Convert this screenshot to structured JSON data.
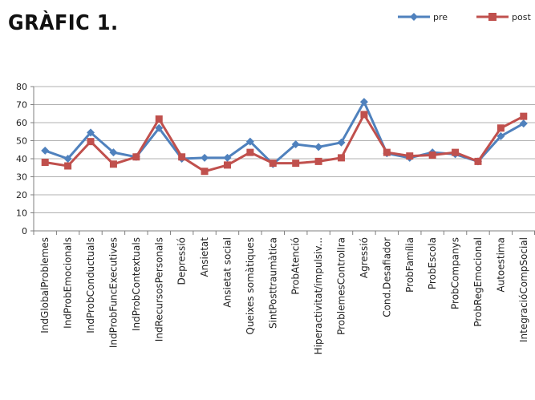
{
  "title": "GRÀFIC 1.",
  "chart_data": {
    "type": "line",
    "ylim": [
      0,
      80
    ],
    "yticks": [
      0,
      10,
      20,
      30,
      40,
      50,
      60,
      70,
      80
    ],
    "grid": true,
    "legend_position": "top-right",
    "categories": [
      "IndGlobalProblemes",
      "IndProbEmocionals",
      "IndProbConductuals",
      "IndProbFuncExecutives",
      "IndProbContextuals",
      "IndRecursosPersonals",
      "Depressió",
      "Ansietat",
      "Ansietat social",
      "Queixes somàtiques",
      "SintPosttraumàtica",
      "ProbAtenció",
      "Hiperactivitat/impulsiv...",
      "ProblemesControlIra",
      "Agressió",
      "Cond.Desafiador",
      "ProbFamília",
      "ProbEscola",
      "ProbCompanys",
      "ProbRegEmocional",
      "Autoestima",
      "IntegracióCompSocial"
    ],
    "series": [
      {
        "name": "pre",
        "color": "#4f81bd",
        "marker": "diamond",
        "values": [
          44.5,
          40,
          54.5,
          43.5,
          41,
          57,
          40,
          40.5,
          40.5,
          49.5,
          37,
          48,
          46.5,
          49,
          71.5,
          43,
          40.5,
          43.5,
          42.5,
          38.5,
          52.5,
          59.5
        ]
      },
      {
        "name": "post",
        "color": "#c0504d",
        "marker": "square",
        "values": [
          38,
          36,
          49.5,
          37,
          41,
          62,
          41,
          33,
          36.5,
          43.5,
          37.5,
          37.5,
          38.5,
          40.5,
          64.5,
          43.5,
          41.5,
          42,
          43.5,
          38.5,
          57,
          63.5
        ]
      }
    ]
  }
}
